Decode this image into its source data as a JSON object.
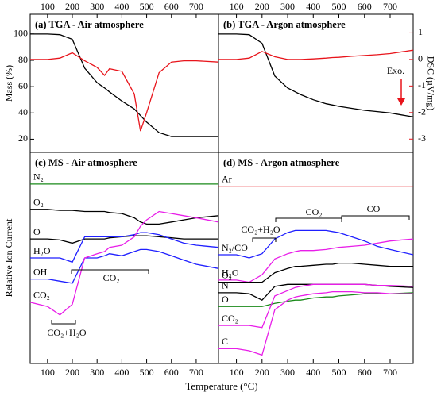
{
  "xlabel": "Temperature (°C)",
  "chart_data": [
    {
      "type": "line",
      "title": "(a) TGA - Air atmosphere",
      "x": [
        30,
        100,
        150,
        200,
        250,
        300,
        330,
        350,
        400,
        450,
        475,
        500,
        550,
        600,
        650,
        700,
        790
      ],
      "xlim": [
        30,
        790
      ],
      "xticks": [
        100,
        200,
        300,
        400,
        500,
        600,
        700
      ],
      "ylim": [
        10,
        115
      ],
      "yticks": [
        20,
        40,
        60,
        80,
        100
      ],
      "ylabel": "Mass (%)",
      "y2lim": [
        -3.5,
        1.7
      ],
      "series": [
        {
          "color": "#000000",
          "values": [
            100,
            100,
            99.5,
            96,
            74,
            63,
            59,
            56,
            49,
            43,
            38,
            33,
            25,
            22,
            22,
            22,
            22
          ]
        },
        {
          "color": "#e8141b",
          "axis": "y2",
          "values": [
            0,
            0,
            0.05,
            0.25,
            -0.05,
            -0.3,
            -0.6,
            -0.35,
            -0.45,
            -1.3,
            -2.7,
            -2.0,
            -0.5,
            -0.1,
            -0.05,
            -0.05,
            -0.1
          ]
        }
      ]
    },
    {
      "type": "line",
      "title": "(b) TGA - Argon atmosphere",
      "x": [
        30,
        100,
        150,
        200,
        250,
        300,
        330,
        350,
        400,
        450,
        475,
        500,
        550,
        600,
        650,
        700,
        790
      ],
      "xlim": [
        30,
        790
      ],
      "xticks": [
        100,
        200,
        300,
        400,
        500,
        600,
        700
      ],
      "ylim": [
        10,
        115
      ],
      "y2lim": [
        -3.5,
        1.7
      ],
      "y2ticks": [
        -3,
        -2,
        -1,
        0,
        1
      ],
      "y2label": "DSC (µV/mg)",
      "annotations": [
        "Exo."
      ],
      "series": [
        {
          "color": "#000000",
          "values": [
            100,
            100,
            99.5,
            93,
            68,
            59,
            56,
            54,
            50,
            47,
            46,
            45,
            43.5,
            42,
            41,
            40,
            37
          ]
        },
        {
          "color": "#e8141b",
          "axis": "y2",
          "values": [
            0,
            0,
            0.05,
            0.3,
            0.1,
            0,
            0,
            0,
            0.02,
            0.05,
            0.07,
            0.08,
            0.12,
            0.15,
            0.18,
            0.22,
            0.35
          ]
        }
      ]
    },
    {
      "type": "line",
      "title": "(c) MS - Air atmosphere",
      "x": [
        30,
        100,
        150,
        200,
        250,
        300,
        330,
        350,
        400,
        450,
        475,
        500,
        550,
        600,
        650,
        700,
        790
      ],
      "xlim": [
        30,
        790
      ],
      "xticks": [
        100,
        200,
        300,
        400,
        500,
        600,
        700
      ],
      "ylim": [
        0,
        100
      ],
      "ylabel": "Relative Ion Current",
      "annotations": [
        "CO₂",
        "CO₂+H₂O"
      ],
      "series": [
        {
          "name": "N₂",
          "color": "#1a8a1a",
          "values": [
            85,
            85,
            85,
            85,
            85,
            85,
            85,
            85,
            85,
            85,
            85,
            85,
            85,
            85,
            85,
            85,
            85
          ]
        },
        {
          "name": "O₂",
          "color": "#000000",
          "values": [
            73,
            73,
            72.5,
            72.5,
            72,
            72,
            72,
            71.5,
            71,
            69,
            67,
            66,
            66,
            67,
            68,
            69,
            70
          ]
        },
        {
          "name": "O",
          "color": "#000000",
          "values": [
            59,
            59,
            58.5,
            57,
            59,
            59,
            59,
            59.5,
            60,
            60.5,
            60.5,
            60.5,
            60,
            59.5,
            59,
            59,
            59
          ]
        },
        {
          "name": "H₂O",
          "color": "#1f1fff",
          "values": [
            50,
            50,
            50,
            48,
            60,
            60,
            60,
            60,
            60,
            61,
            62,
            62,
            61,
            59,
            57,
            56,
            55
          ]
        },
        {
          "name": "OH",
          "color": "#1f1fff",
          "values": [
            40,
            40,
            39,
            38,
            50,
            50,
            51,
            52,
            51,
            53,
            54,
            54,
            53,
            51,
            49,
            47,
            45
          ]
        },
        {
          "name": "CO₂",
          "color": "#e81ee8",
          "values": [
            29,
            27,
            23,
            28,
            50,
            52,
            53,
            55,
            56,
            60,
            65,
            68,
            72,
            71,
            70,
            69,
            67
          ]
        }
      ]
    },
    {
      "type": "line",
      "title": "(d) MS - Argon atmosphere",
      "x": [
        30,
        100,
        150,
        200,
        250,
        300,
        330,
        350,
        400,
        450,
        475,
        500,
        550,
        600,
        650,
        700,
        790
      ],
      "xlim": [
        30,
        790
      ],
      "xticks": [
        100,
        200,
        300,
        400,
        500,
        600,
        700
      ],
      "ylim": [
        0,
        100
      ],
      "annotations": [
        "CO₂+H₂O",
        "CO₂",
        "CO"
      ],
      "series": [
        {
          "name": "Ar",
          "color": "#e8141b",
          "values": [
            84,
            84,
            84,
            84,
            84,
            84,
            84,
            84,
            84,
            84,
            84,
            84,
            84,
            84,
            84,
            84,
            84
          ]
        },
        {
          "name": "N₂/CO",
          "color": "#1f1fff",
          "values": [
            51.5,
            51.5,
            50,
            52,
            59,
            62,
            63,
            63,
            63,
            63,
            62.5,
            62,
            60,
            58,
            55.5,
            54,
            51.5
          ]
        },
        {
          "name": "H₂O",
          "color": "#e81ee8",
          "values": [
            39.5,
            39.5,
            38.5,
            42,
            49.5,
            52,
            53,
            53.5,
            53.5,
            54,
            54.5,
            55,
            55.5,
            56,
            57,
            58,
            59
          ]
        },
        {
          "name": "O₂",
          "color": "#000000",
          "values": [
            38.5,
            38.5,
            38.5,
            38.5,
            43,
            45,
            46,
            46,
            46.5,
            47,
            47,
            47.5,
            47.5,
            47,
            46.5,
            46,
            46
          ]
        },
        {
          "name": "N",
          "color": "#000000",
          "values": [
            33.5,
            33.5,
            33,
            30,
            36.5,
            37.5,
            37.5,
            37.5,
            37.5,
            37.5,
            37.5,
            37.5,
            37.5,
            37.5,
            37,
            36.5,
            36
          ]
        },
        {
          "name": "O",
          "color": "#1a8a1a",
          "values": [
            27,
            27,
            27,
            27,
            28.5,
            29.5,
            30,
            30,
            31,
            31.5,
            31.5,
            32,
            32.5,
            33,
            33,
            33,
            33.5
          ]
        },
        {
          "name": "CO₂",
          "color": "#e81ee8",
          "values": [
            18,
            18,
            18,
            17,
            32,
            34.5,
            36,
            36.5,
            37.5,
            37.5,
            37.5,
            37.5,
            37.5,
            37.5,
            37,
            37,
            36.5
          ]
        },
        {
          "name": "C",
          "color": "#e81ee8",
          "values": [
            7,
            7,
            6,
            4,
            25.5,
            30,
            31.5,
            32,
            33,
            33.5,
            34,
            34,
            34,
            33.5,
            33.5,
            33,
            33
          ]
        }
      ]
    }
  ]
}
